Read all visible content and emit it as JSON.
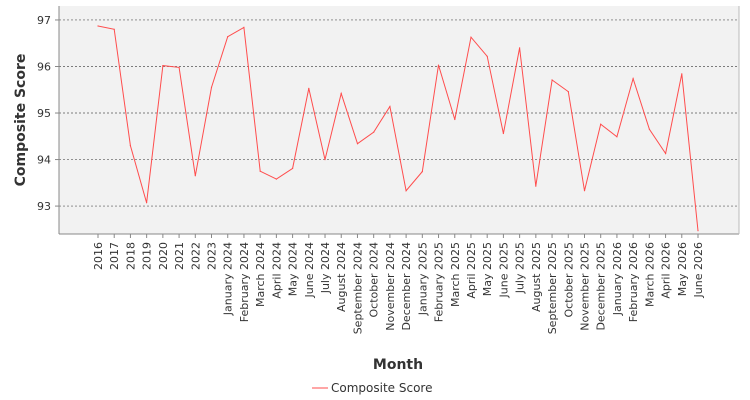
{
  "chart_data": {
    "type": "line",
    "xlabel": "Month",
    "ylabel": "Composite Score",
    "ylim": [
      92.4,
      97.3
    ],
    "yticks": [
      93,
      94,
      95,
      96,
      97
    ],
    "grid": true,
    "legend_position": "bottom-center",
    "categories": [
      "2016",
      "2017",
      "2018",
      "2019",
      "2020",
      "2021",
      "2022",
      "2023",
      "January 2024",
      "February 2024",
      "March 2024",
      "April 2024",
      "May 2024",
      "June 2024",
      "July 2024",
      "August 2024",
      "September 2024",
      "October 2024",
      "November 2024",
      "December 2024",
      "January 2025",
      "February 2025",
      "March 2025",
      "April 2025",
      "May 2025",
      "June 2025",
      "July 2025",
      "August 2025",
      "September 2025",
      "October 2025",
      "November 2025",
      "December 2025",
      "January 2026",
      "February 2026",
      "March 2026",
      "April 2026",
      "May 2026",
      "June 2026"
    ],
    "series": [
      {
        "name": "Composite Score",
        "color": "#ff4d4d",
        "values": [
          96.87,
          96.8,
          94.3,
          93.07,
          96.02,
          95.98,
          93.65,
          95.55,
          96.64,
          96.84,
          93.75,
          93.58,
          93.81,
          95.53,
          94.0,
          95.42,
          94.34,
          94.59,
          95.14,
          93.33,
          93.74,
          96.03,
          94.86,
          96.63,
          96.22,
          94.56,
          96.4,
          93.43,
          95.71,
          95.46,
          93.33,
          94.76,
          94.49,
          95.74,
          94.65,
          94.13,
          95.84,
          92.47
        ]
      }
    ]
  }
}
